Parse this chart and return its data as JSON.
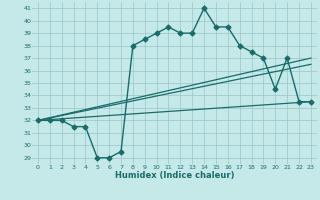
{
  "xlabel": "Humidex (Indice chaleur)",
  "ylabel": "",
  "bg_color": "#c5e8e8",
  "grid_color": "#a0cccc",
  "line_color": "#1a6b6b",
  "xlim": [
    -0.5,
    23.5
  ],
  "ylim": [
    28.5,
    41.5
  ],
  "yticks": [
    29,
    30,
    31,
    32,
    33,
    34,
    35,
    36,
    37,
    38,
    39,
    40,
    41
  ],
  "xticks": [
    0,
    1,
    2,
    3,
    4,
    5,
    6,
    7,
    8,
    9,
    10,
    11,
    12,
    13,
    14,
    15,
    16,
    17,
    18,
    19,
    20,
    21,
    22,
    23
  ],
  "series": [
    {
      "x": [
        0,
        1,
        2,
        3,
        4,
        5,
        6,
        7,
        8,
        9,
        10,
        11,
        12,
        13,
        14,
        15,
        16,
        17,
        18,
        19,
        20,
        21,
        22,
        23
      ],
      "y": [
        32,
        32,
        32,
        31.5,
        31.5,
        29,
        29,
        29.5,
        38,
        38.5,
        39,
        39.5,
        39,
        39,
        41,
        39.5,
        39.5,
        38,
        37.5,
        37,
        34.5,
        37,
        33.5,
        33.5
      ],
      "marker": "D",
      "markersize": 2.5,
      "linewidth": 1.0
    },
    {
      "x": [
        0,
        23
      ],
      "y": [
        32,
        37
      ],
      "marker": null,
      "linewidth": 0.9
    },
    {
      "x": [
        0,
        23
      ],
      "y": [
        32,
        36.5
      ],
      "marker": null,
      "linewidth": 0.9
    },
    {
      "x": [
        0,
        23
      ],
      "y": [
        32,
        33.5
      ],
      "marker": null,
      "linewidth": 0.9
    }
  ]
}
